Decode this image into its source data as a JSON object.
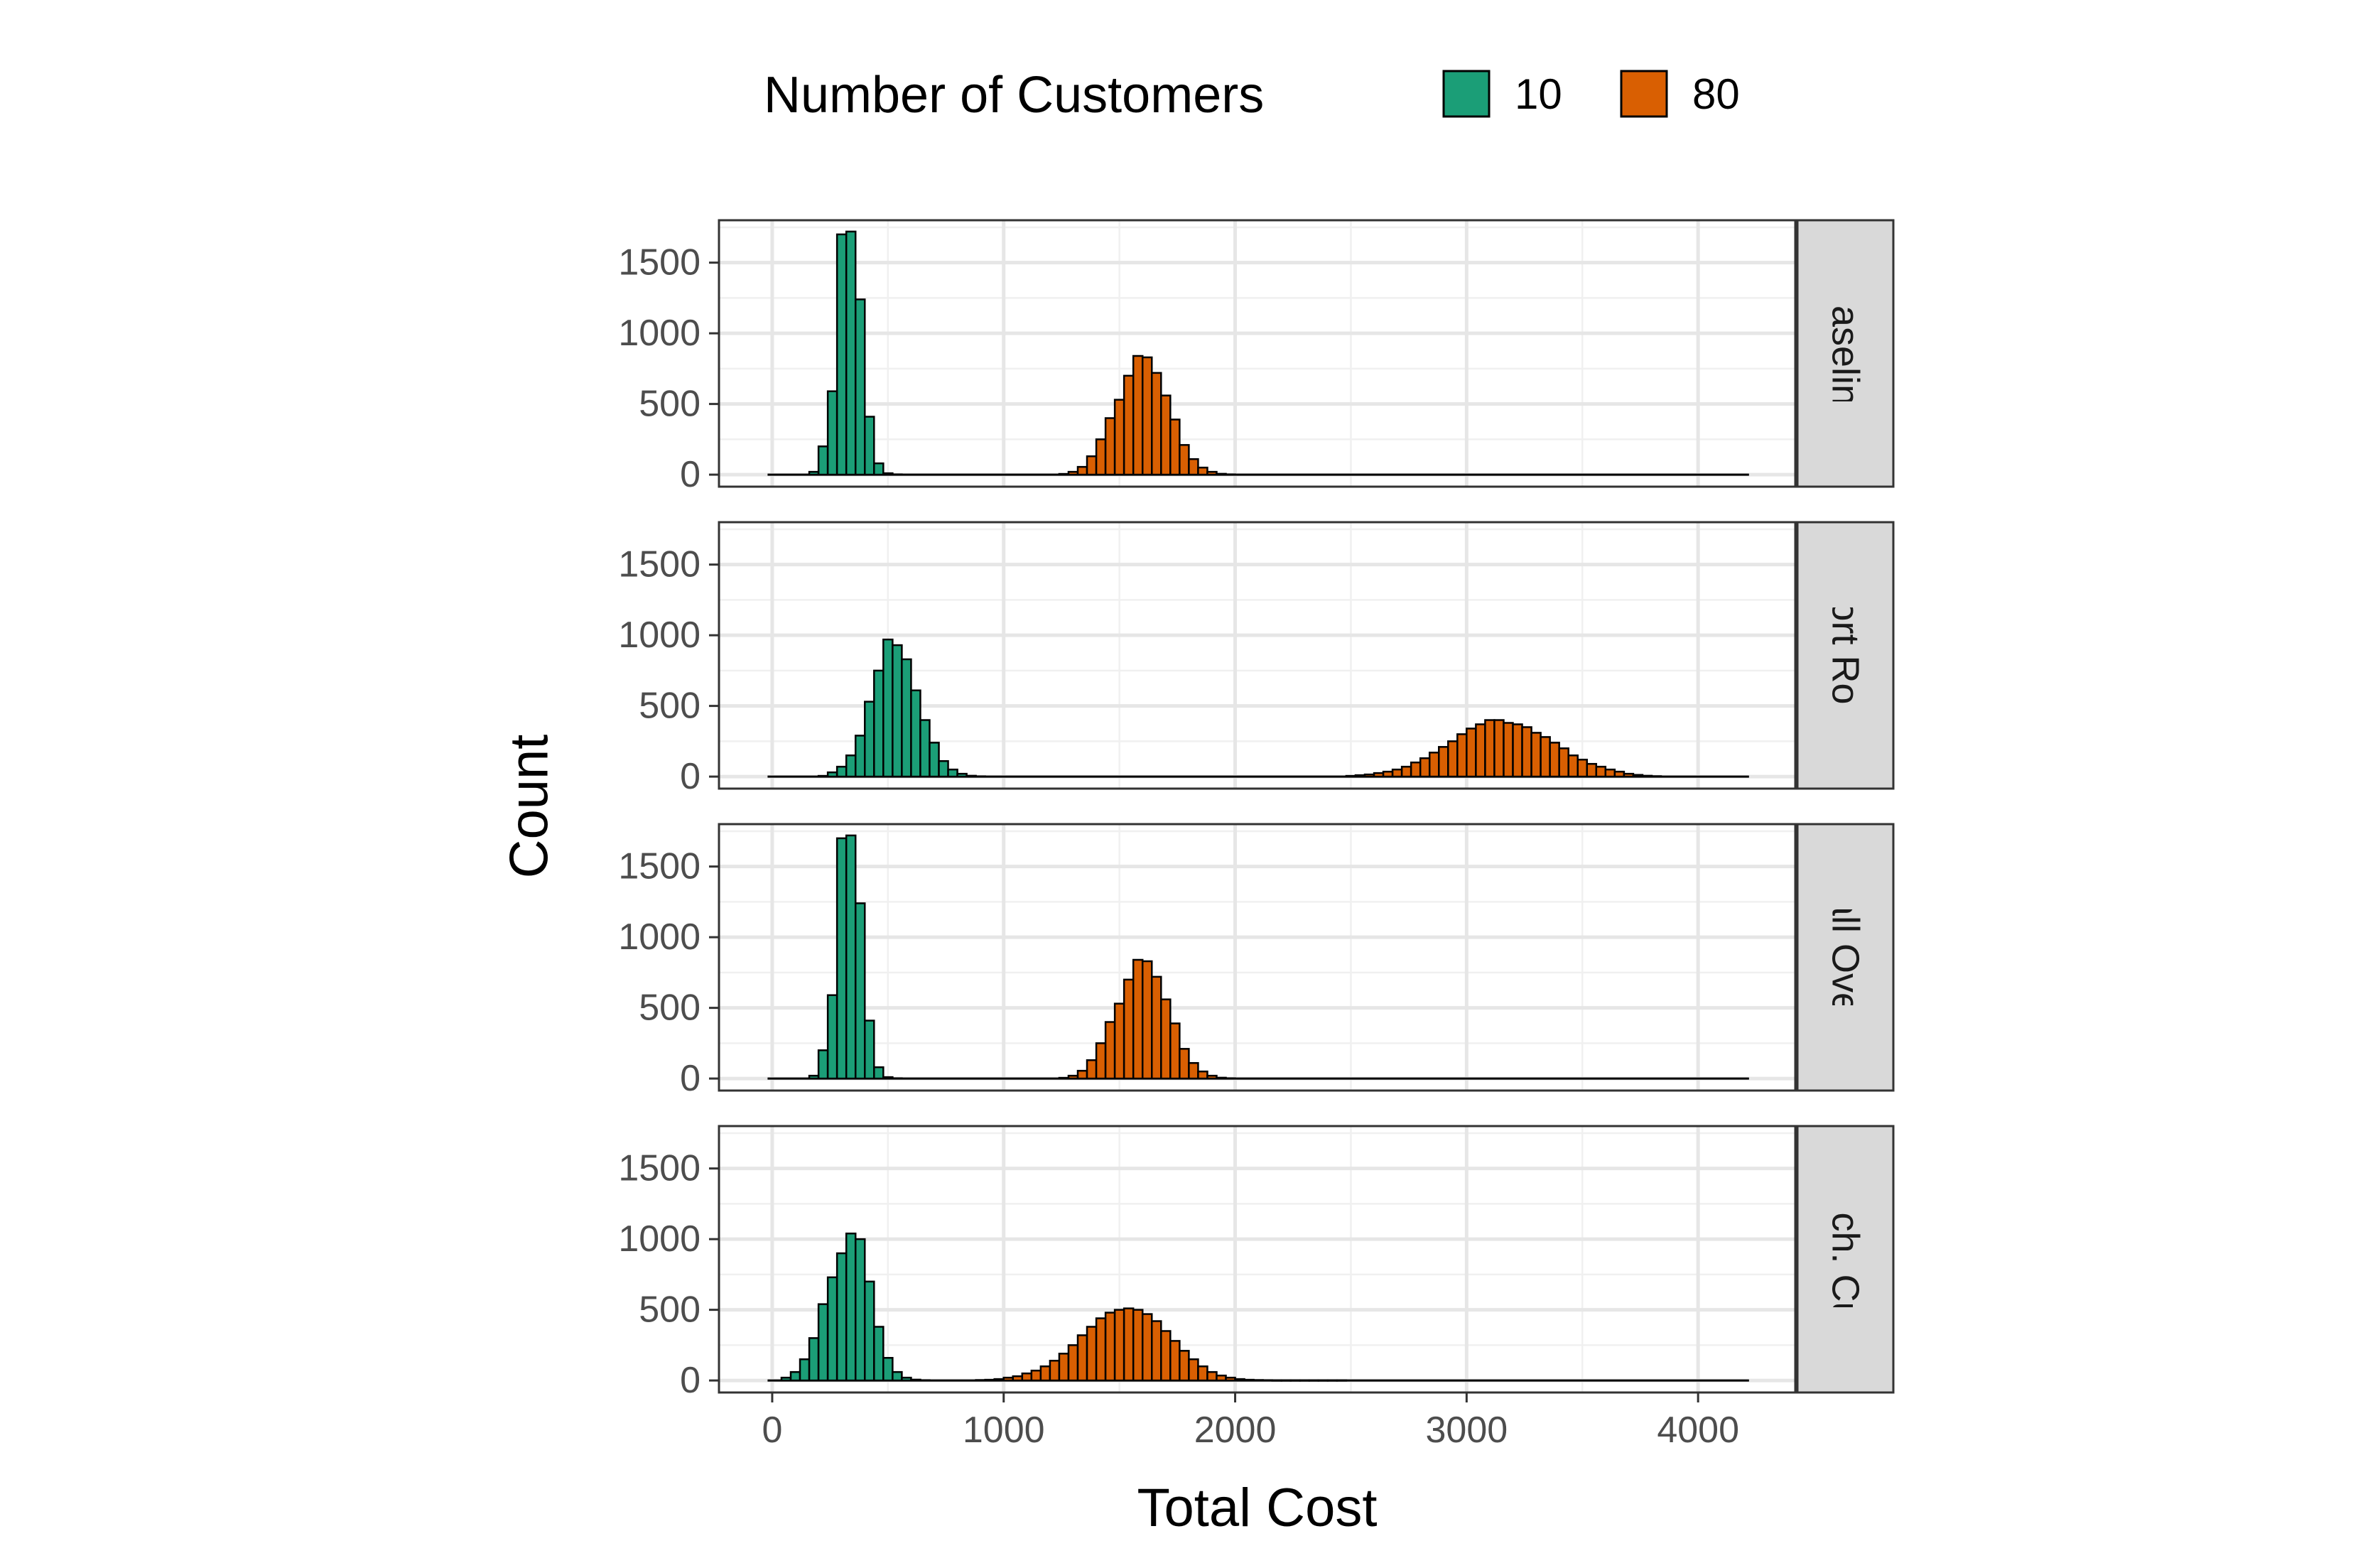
{
  "legend": {
    "title": "Number of Customers",
    "items": [
      {
        "label": "10",
        "color": "#1b9e77"
      },
      {
        "label": "80",
        "color": "#d95f02"
      }
    ]
  },
  "chart_data": {
    "type": "bar",
    "subtype": "faceted histogram",
    "xlabel": "Total Cost",
    "ylabel": "Count",
    "xlim": [
      -230,
      4420
    ],
    "ylim": [
      -85,
      1800
    ],
    "x_ticks": [
      0,
      1000,
      2000,
      3000,
      4000
    ],
    "y_ticks": [
      0,
      500,
      1000,
      1500
    ],
    "bin_width": 40,
    "grid": true,
    "legend_position": "top",
    "x_range_drawn": [
      -20,
      4220
    ],
    "facets": [
      {
        "label": "Baseline",
        "series": [
          {
            "name": "10",
            "color": "#1b9e77",
            "bin_start": 160,
            "counts": [
              20,
              200,
              590,
              1700,
              1720,
              1240,
              410,
              80,
              10,
              2
            ]
          },
          {
            "name": "80",
            "color": "#d95f02",
            "bin_start": 1240,
            "counts": [
              5,
              20,
              55,
              130,
              250,
              400,
              530,
              700,
              840,
              830,
              720,
              560,
              390,
              210,
              110,
              50,
              20,
              6,
              2
            ]
          }
        ]
      },
      {
        "label": "Short Route",
        "series": [
          {
            "name": "10",
            "color": "#1b9e77",
            "bin_start": 200,
            "counts": [
              5,
              30,
              70,
              150,
              290,
              530,
              750,
              970,
              930,
              830,
              610,
              400,
              240,
              110,
              50,
              20,
              6,
              2
            ]
          },
          {
            "name": "80",
            "color": "#d95f02",
            "bin_start": 2480,
            "counts": [
              5,
              10,
              15,
              25,
              35,
              50,
              70,
              100,
              130,
              170,
              210,
              250,
              300,
              340,
              370,
              400,
              400,
              380,
              370,
              350,
              310,
              280,
              240,
              200,
              150,
              120,
              90,
              70,
              50,
              35,
              20,
              12,
              6,
              3
            ]
          }
        ]
      },
      {
        "label": "Small Overlap",
        "series": [
          {
            "name": "10",
            "color": "#1b9e77",
            "bin_start": 160,
            "counts": [
              20,
              200,
              590,
              1700,
              1720,
              1240,
              410,
              80,
              10,
              2
            ]
          },
          {
            "name": "80",
            "color": "#d95f02",
            "bin_start": 1240,
            "counts": [
              5,
              20,
              55,
              130,
              250,
              400,
              530,
              700,
              840,
              830,
              720,
              560,
              390,
              210,
              110,
              50,
              20,
              6,
              2
            ]
          }
        ]
      },
      {
        "label": "Stoch. Cust.",
        "series": [
          {
            "name": "10",
            "color": "#1b9e77",
            "bin_start": 40,
            "counts": [
              20,
              60,
              150,
              300,
              540,
              730,
              900,
              1040,
              1000,
              700,
              380,
              160,
              60,
              20,
              6,
              2
            ]
          },
          {
            "name": "80",
            "color": "#d95f02",
            "bin_start": 880,
            "counts": [
              3,
              5,
              10,
              20,
              30,
              50,
              70,
              100,
              140,
              190,
              250,
              320,
              380,
              440,
              480,
              500,
              510,
              500,
              470,
              420,
              350,
              280,
              210,
              150,
              100,
              60,
              35,
              20,
              10,
              5,
              3,
              2,
              1,
              1,
              1,
              1,
              1,
              1,
              1,
              1
            ]
          }
        ]
      }
    ]
  }
}
